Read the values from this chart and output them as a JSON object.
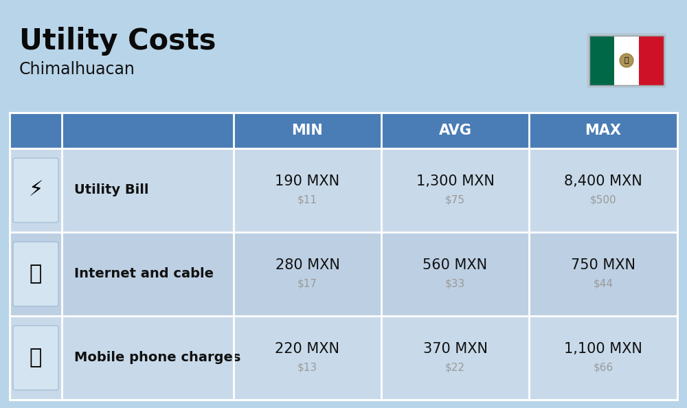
{
  "title": "Utility Costs",
  "subtitle": "Chimalhuacan",
  "background_color": "#b8d4e8",
  "header_bg_color": "#4a7db5",
  "header_text_color": "#ffffff",
  "row_bg_color_odd": "#c8daea",
  "row_bg_color_even": "#bdd0e3",
  "col_headers": [
    "MIN",
    "AVG",
    "MAX"
  ],
  "rows": [
    {
      "label": "Utility Bill",
      "values_mxn": [
        "190 MXN",
        "1,300 MXN",
        "8,400 MXN"
      ],
      "values_usd": [
        "$11",
        "$75",
        "$500"
      ]
    },
    {
      "label": "Internet and cable",
      "values_mxn": [
        "280 MXN",
        "560 MXN",
        "750 MXN"
      ],
      "values_usd": [
        "$17",
        "$33",
        "$44"
      ]
    },
    {
      "label": "Mobile phone charges",
      "values_mxn": [
        "220 MXN",
        "370 MXN",
        "1,100 MXN"
      ],
      "values_usd": [
        "$13",
        "$22",
        "$66"
      ]
    }
  ],
  "title_fontsize": 30,
  "subtitle_fontsize": 17,
  "header_fontsize": 15,
  "label_fontsize": 14,
  "value_mxn_fontsize": 15,
  "value_usd_fontsize": 11,
  "flag_colors": [
    "#006847",
    "#ffffff",
    "#ce1126"
  ],
  "title_color": "#0a0a0a",
  "subtitle_color": "#111111",
  "label_color": "#111111",
  "value_mxn_color": "#111111",
  "value_usd_color": "#999999"
}
